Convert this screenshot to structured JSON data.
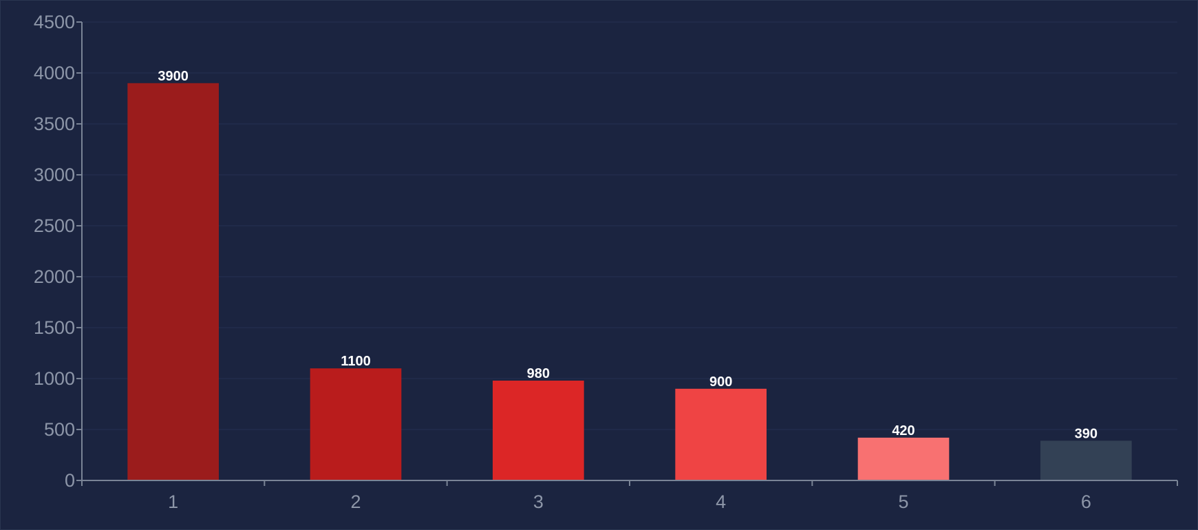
{
  "chart_data": {
    "type": "bar",
    "categories": [
      "1",
      "2",
      "3",
      "4",
      "5",
      "6"
    ],
    "values": [
      3900,
      1100,
      980,
      900,
      420,
      390
    ],
    "data_labels": [
      "3900",
      "1100",
      "980",
      "900",
      "420",
      "390"
    ],
    "bar_colors": [
      "#9b1c1c",
      "#b91c1c",
      "#dc2626",
      "#ef4444",
      "#f87171",
      "#334155"
    ],
    "y_ticks": [
      0,
      500,
      1000,
      1500,
      2000,
      2500,
      3000,
      3500,
      4000,
      4500
    ],
    "y_tick_labels": [
      "0",
      "500",
      "1000",
      "1500",
      "2000",
      "2500",
      "3000",
      "3500",
      "4000",
      "4500"
    ],
    "ylim": [
      0,
      4500
    ],
    "grid": true,
    "legend": "none",
    "title": "",
    "xlabel": "",
    "ylabel": ""
  },
  "colors": {
    "background": "#1b2440",
    "axis": "#7a8496",
    "grid": "#243052",
    "tick_text": "#8d96a8",
    "label_text": "#ffffff"
  }
}
